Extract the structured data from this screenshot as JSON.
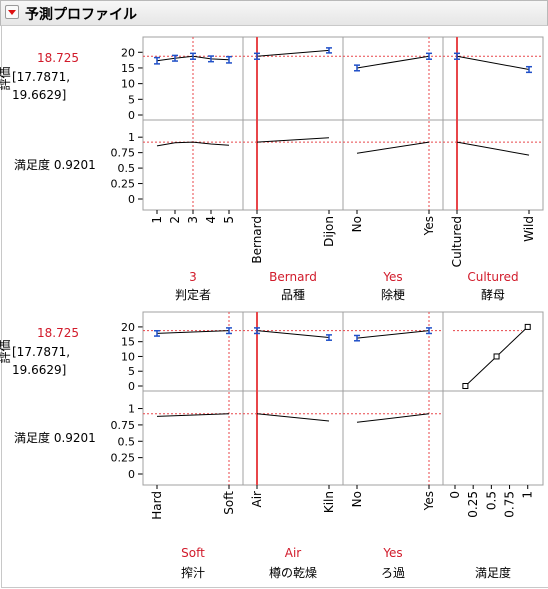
{
  "header": {
    "title": "予測プロファイル"
  },
  "chart_data": {
    "type": "line",
    "title": "予測プロファイル",
    "responses": [
      {
        "name": "評価",
        "value_label": "18.725",
        "ci_label_1": "[17.7871,",
        "ci_label_2": "19.6629]",
        "ylim": [
          0,
          22
        ],
        "ticks": [
          "0",
          "5",
          "10",
          "15",
          "20"
        ]
      },
      {
        "name": "満足度",
        "value_label": "満足度 0.9201",
        "ylim": [
          0,
          1.1
        ],
        "ticks": [
          "0",
          "0.25",
          "0.5",
          "0.75",
          "1"
        ]
      }
    ],
    "rows": [
      {
        "factors": [
          {
            "name": "判定者",
            "current": "3",
            "categories": [
              "1",
              "2",
              "3",
              "4",
              "5"
            ],
            "current_index": 2,
            "rating": [
              17.3,
              18.1,
              18.725,
              17.9,
              17.6
            ],
            "rating_ci": [
              1.0,
              0.9,
              0.94,
              0.9,
              1.0
            ],
            "desirability": [
              0.86,
              0.91,
              0.92,
              0.89,
              0.87
            ]
          },
          {
            "name": "品種",
            "current": "Bernard",
            "categories": [
              "Bernard",
              "Dijon"
            ],
            "current_index": 0,
            "rating": [
              18.725,
              20.6
            ],
            "rating_ci": [
              0.94,
              0.8
            ],
            "desirability": [
              0.92,
              0.99
            ]
          },
          {
            "name": "除梗",
            "current": "Yes",
            "categories": [
              "No",
              "Yes"
            ],
            "current_index": 1,
            "rating": [
              15.0,
              18.725
            ],
            "rating_ci": [
              0.9,
              0.94
            ],
            "desirability": [
              0.74,
              0.92
            ]
          },
          {
            "name": "酵母",
            "current": "Cultured",
            "categories": [
              "Cultured",
              "Wild"
            ],
            "current_index": 0,
            "rating": [
              18.725,
              14.5
            ],
            "rating_ci": [
              0.94,
              0.9
            ],
            "desirability": [
              0.92,
              0.71
            ]
          }
        ]
      },
      {
        "factors": [
          {
            "name": "搾汁",
            "current": "Soft",
            "categories": [
              "Hard",
              "Soft"
            ],
            "current_index": 1,
            "rating": [
              17.8,
              18.725
            ],
            "rating_ci": [
              0.9,
              0.94
            ],
            "desirability": [
              0.88,
              0.92
            ]
          },
          {
            "name": "樽の乾燥",
            "current": "Air",
            "categories": [
              "Air",
              "Kiln"
            ],
            "current_index": 0,
            "rating": [
              18.725,
              16.4
            ],
            "rating_ci": [
              0.94,
              0.9
            ],
            "desirability": [
              0.92,
              0.81
            ]
          },
          {
            "name": "ろ過",
            "current": "Yes",
            "categories": [
              "No",
              "Yes"
            ],
            "current_index": 1,
            "rating": [
              16.2,
              18.725
            ],
            "rating_ci": [
              0.9,
              0.94
            ],
            "desirability": [
              0.79,
              0.92
            ]
          }
        ],
        "desirability_function": {
          "name": "満足度",
          "x_ticks": [
            "0",
            "0.25",
            "0.5",
            "0.75",
            "1"
          ],
          "x": [
            0.15,
            0.6,
            1.05
          ],
          "y": [
            0.0,
            10.0,
            20.0
          ]
        }
      }
    ],
    "colors": {
      "current_line": "#e8464a",
      "ci_bar": "#2050c8",
      "current_text": "#d11a2a",
      "trace": "#000000"
    }
  }
}
